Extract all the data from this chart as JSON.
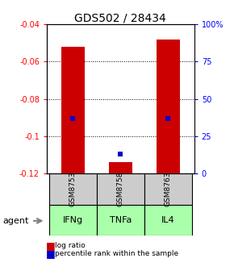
{
  "title": "GDS502 / 28434",
  "samples": [
    "GSM8753",
    "GSM8758",
    "GSM8763"
  ],
  "agents": [
    "IFNg",
    "TNFa",
    "IL4"
  ],
  "log_ratios": [
    -0.052,
    -0.114,
    -0.048
  ],
  "percentile_ranks": [
    37,
    13,
    37
  ],
  "y_left_min": -0.12,
  "y_left_max": -0.04,
  "y_right_min": 0,
  "y_right_max": 100,
  "y_left_ticks": [
    -0.12,
    -0.1,
    -0.08,
    -0.06,
    -0.04
  ],
  "y_left_tick_labels": [
    "-0.12",
    "-0.1",
    "-0.08",
    "-0.06",
    "-0.04"
  ],
  "y_right_ticks": [
    0,
    25,
    50,
    75,
    100
  ],
  "y_right_tick_labels": [
    "0",
    "25",
    "50",
    "75",
    "100%"
  ],
  "bar_color": "#cc0000",
  "percentile_color": "#0000cc",
  "agent_color": "#aaffaa",
  "sample_bg_color": "#cccccc",
  "grid_color": "#000000",
  "title_fontsize": 10,
  "tick_fontsize": 7,
  "bar_width": 0.5,
  "x_positions": [
    0,
    1,
    2
  ],
  "x_lim": [
    -0.55,
    2.55
  ]
}
